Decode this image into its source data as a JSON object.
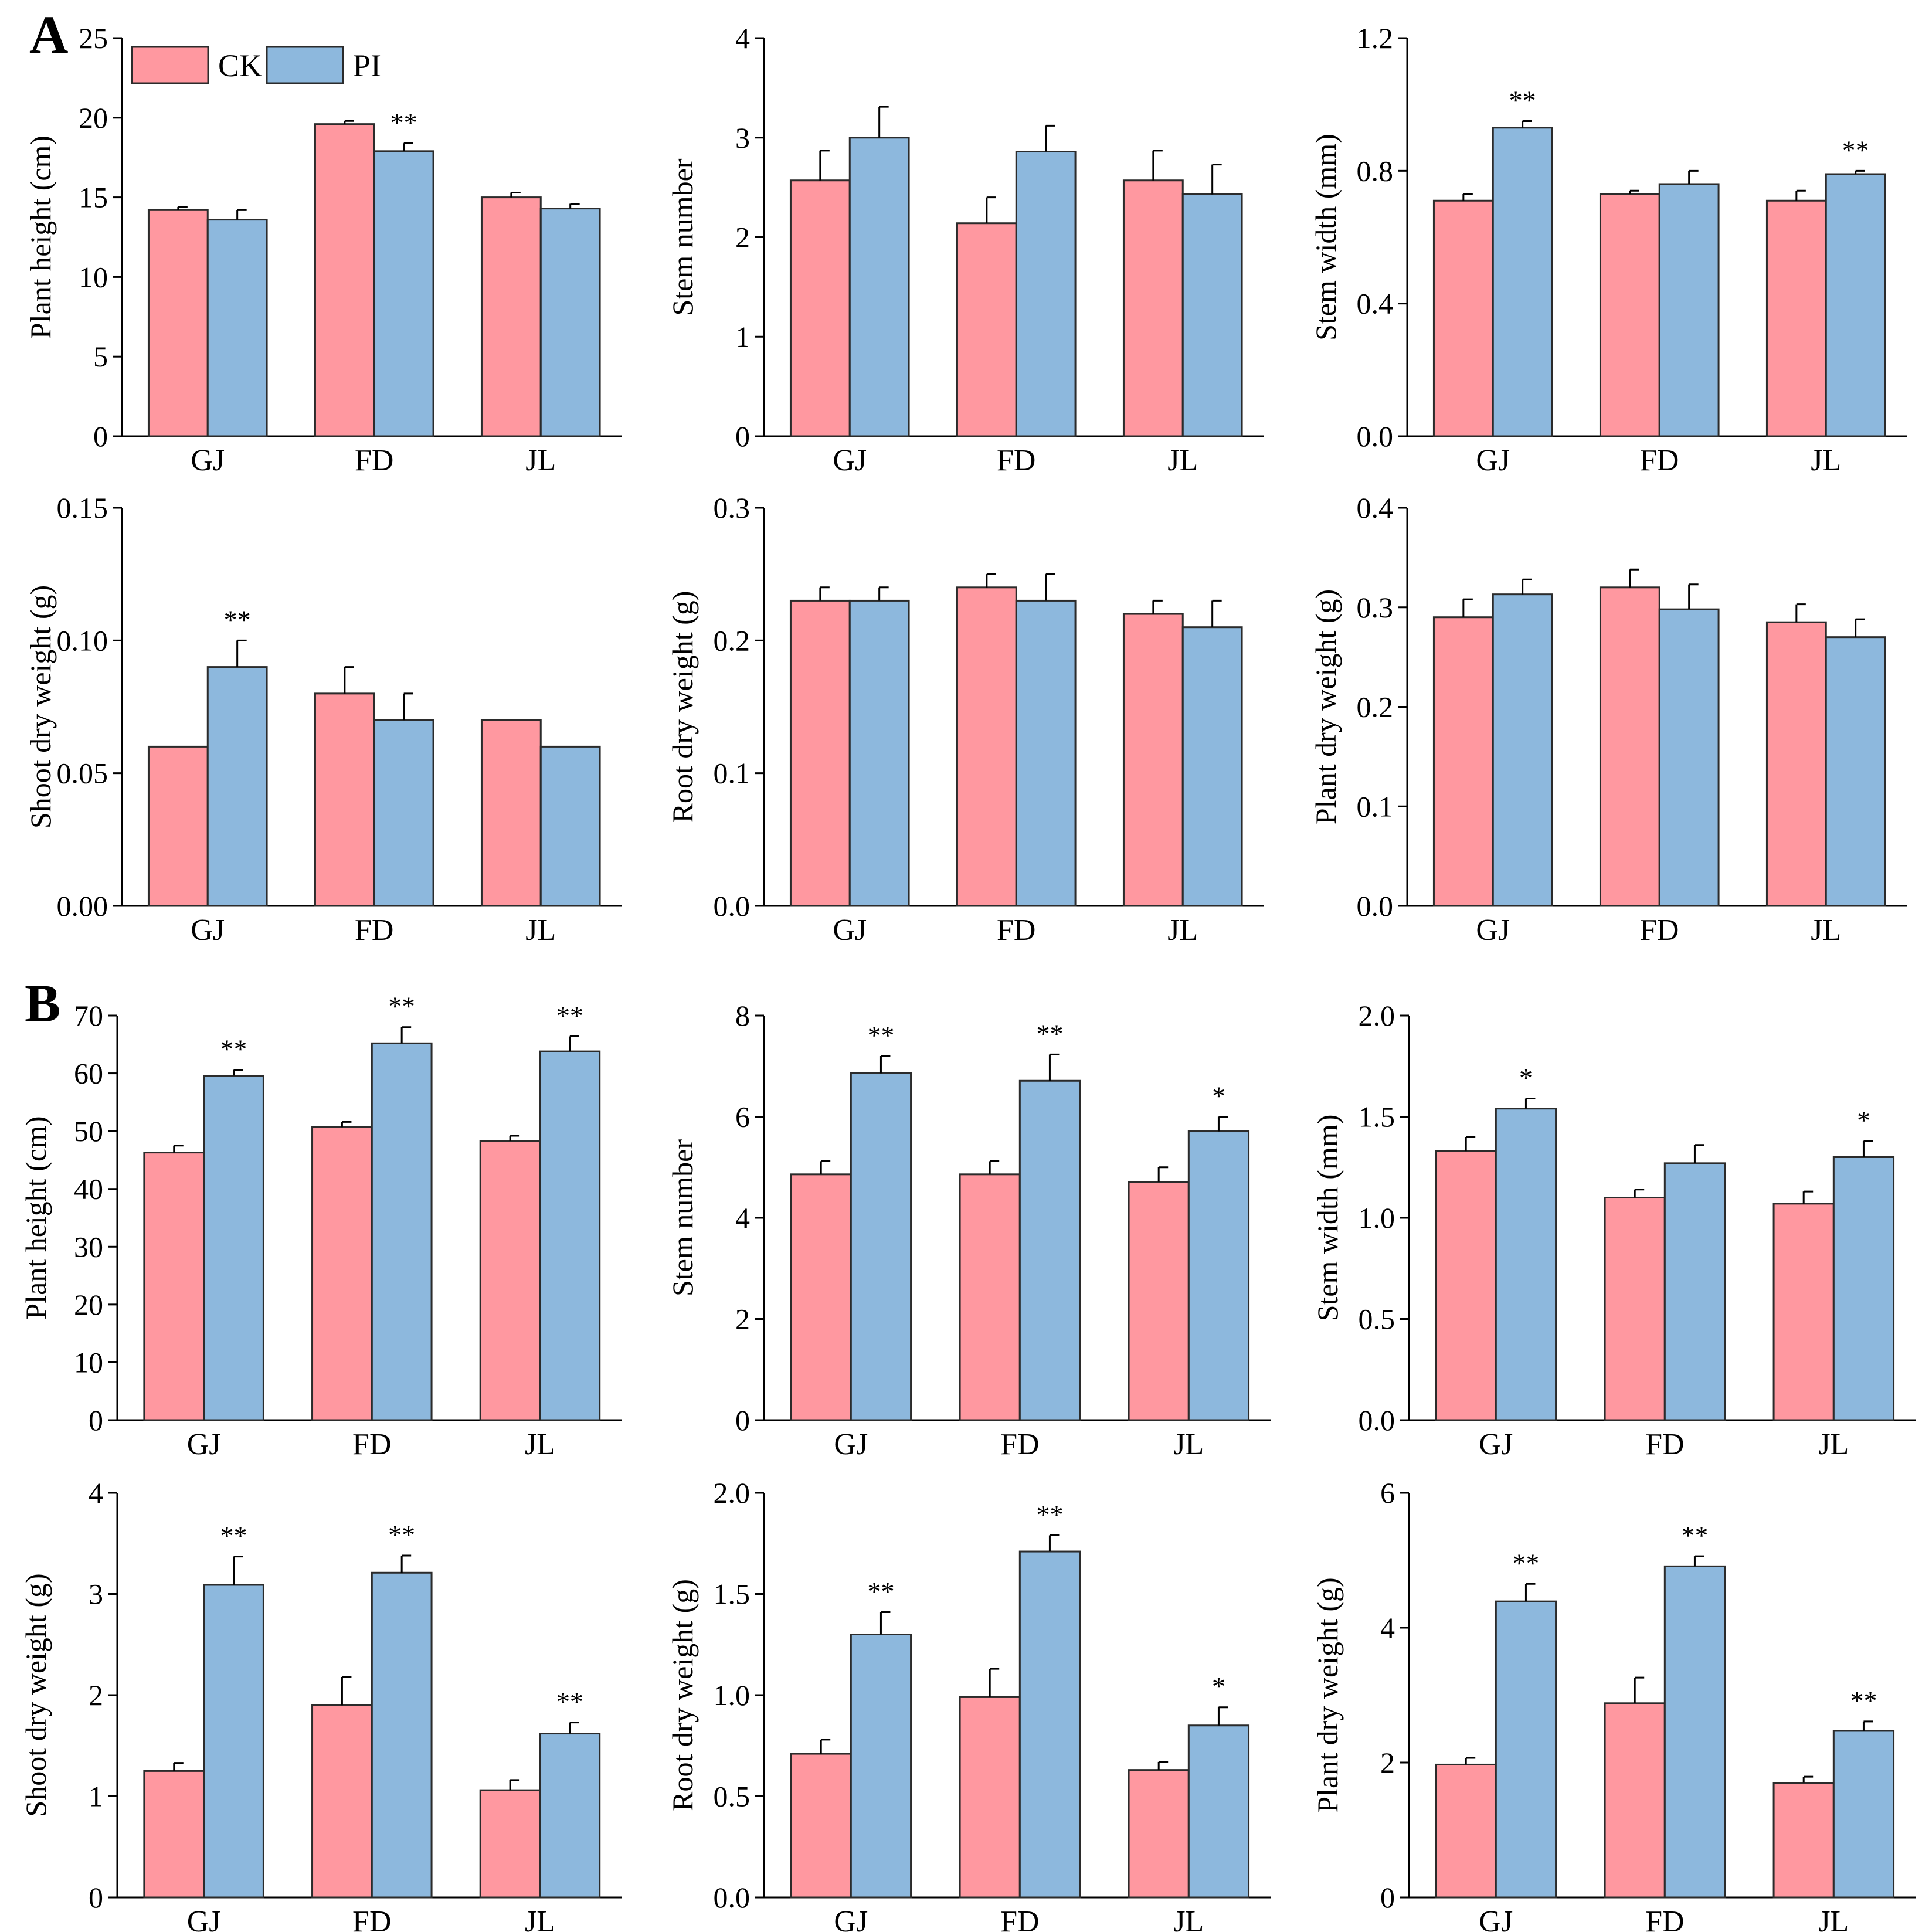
{
  "panel_labels": [
    "A",
    "B"
  ],
  "legend": [
    {
      "label": "CK",
      "color": "#ff98a0"
    },
    {
      "label": "PI",
      "color": "#8db8dd"
    }
  ],
  "colors": {
    "CK": "#ff98a0",
    "PI": "#8db8dd"
  },
  "chart_data": [
    {
      "type": "bar",
      "panel": "A",
      "ylabel": "Plant height (cm)",
      "categories": [
        "GJ",
        "FD",
        "JL"
      ],
      "ylim": [
        0,
        25
      ],
      "yticks": [
        "0",
        "5",
        "10",
        "15",
        "20",
        "25"
      ],
      "series": [
        {
          "name": "CK",
          "values": [
            14.2,
            19.6,
            15.0
          ],
          "errors": [
            0.2,
            0.2,
            0.3
          ]
        },
        {
          "name": "PI",
          "values": [
            13.6,
            17.9,
            14.3
          ],
          "errors": [
            0.6,
            0.5,
            0.3
          ]
        }
      ],
      "significance": [
        "",
        "**",
        ""
      ]
    },
    {
      "type": "bar",
      "panel": "A",
      "ylabel": "Stem number",
      "categories": [
        "GJ",
        "FD",
        "JL"
      ],
      "ylim": [
        0,
        4
      ],
      "yticks": [
        "0",
        "1",
        "2",
        "3",
        "4"
      ],
      "series": [
        {
          "name": "CK",
          "values": [
            2.57,
            2.14,
            2.57
          ],
          "errors": [
            0.3,
            0.26,
            0.3
          ]
        },
        {
          "name": "PI",
          "values": [
            3.0,
            2.86,
            2.43
          ],
          "errors": [
            0.31,
            0.26,
            0.3
          ]
        }
      ],
      "significance": [
        "",
        "",
        ""
      ]
    },
    {
      "type": "bar",
      "panel": "A",
      "ylabel": "Stem width (mm)",
      "categories": [
        "GJ",
        "FD",
        "JL"
      ],
      "ylim": [
        0,
        1.2
      ],
      "yticks": [
        "0.0",
        "0.4",
        "0.8",
        "1.2"
      ],
      "series": [
        {
          "name": "CK",
          "values": [
            0.71,
            0.73,
            0.71
          ],
          "errors": [
            0.02,
            0.01,
            0.03
          ]
        },
        {
          "name": "PI",
          "values": [
            0.93,
            0.76,
            0.79
          ],
          "errors": [
            0.02,
            0.04,
            0.01
          ]
        }
      ],
      "significance": [
        "**",
        "",
        "**"
      ]
    },
    {
      "type": "bar",
      "panel": "A",
      "ylabel": "Shoot dry weight (g)",
      "categories": [
        "GJ",
        "FD",
        "JL"
      ],
      "ylim": [
        0,
        0.15
      ],
      "yticks": [
        "0.00",
        "0.05",
        "0.10",
        "0.15"
      ],
      "series": [
        {
          "name": "CK",
          "values": [
            0.06,
            0.08,
            0.07
          ],
          "errors": [
            0,
            0.01,
            0
          ]
        },
        {
          "name": "PI",
          "values": [
            0.09,
            0.07,
            0.06
          ],
          "errors": [
            0.01,
            0.01,
            0
          ]
        }
      ],
      "significance": [
        "**",
        "",
        ""
      ]
    },
    {
      "type": "bar",
      "panel": "A",
      "ylabel": "Root dry weight (g)",
      "categories": [
        "GJ",
        "FD",
        "JL"
      ],
      "ylim": [
        0,
        0.3
      ],
      "yticks": [
        "0.0",
        "0.1",
        "0.2",
        "0.3"
      ],
      "series": [
        {
          "name": "CK",
          "values": [
            0.23,
            0.24,
            0.22
          ],
          "errors": [
            0.01,
            0.01,
            0.01
          ]
        },
        {
          "name": "PI",
          "values": [
            0.23,
            0.23,
            0.21
          ],
          "errors": [
            0.01,
            0.02,
            0.02
          ]
        }
      ],
      "significance": [
        "",
        "",
        ""
      ]
    },
    {
      "type": "bar",
      "panel": "A",
      "ylabel": "Plant dry weight (g)",
      "categories": [
        "GJ",
        "FD",
        "JL"
      ],
      "ylim": [
        0,
        0.4
      ],
      "yticks": [
        "0.0",
        "0.1",
        "0.2",
        "0.3",
        "0.4"
      ],
      "series": [
        {
          "name": "CK",
          "values": [
            0.29,
            0.32,
            0.285
          ],
          "errors": [
            0.018,
            0.018,
            0.018
          ]
        },
        {
          "name": "PI",
          "values": [
            0.313,
            0.298,
            0.27
          ],
          "errors": [
            0.015,
            0.025,
            0.018
          ]
        }
      ],
      "significance": [
        "",
        "",
        ""
      ]
    },
    {
      "type": "bar",
      "panel": "B",
      "ylabel": "Plant height (cm)",
      "categories": [
        "GJ",
        "FD",
        "JL"
      ],
      "ylim": [
        0,
        70
      ],
      "yticks": [
        "0",
        "10",
        "20",
        "30",
        "40",
        "50",
        "60",
        "70"
      ],
      "series": [
        {
          "name": "CK",
          "values": [
            46.3,
            50.7,
            48.3
          ],
          "errors": [
            1.2,
            0.9,
            0.9
          ]
        },
        {
          "name": "PI",
          "values": [
            59.6,
            65.2,
            63.8
          ],
          "errors": [
            1.0,
            2.8,
            2.6
          ]
        }
      ],
      "significance": [
        "**",
        "**",
        "**"
      ]
    },
    {
      "type": "bar",
      "panel": "B",
      "ylabel": "Stem number",
      "categories": [
        "GJ",
        "FD",
        "JL"
      ],
      "ylim": [
        0,
        8
      ],
      "yticks": [
        "0",
        "2",
        "4",
        "6",
        "8"
      ],
      "series": [
        {
          "name": "CK",
          "values": [
            4.86,
            4.86,
            4.71
          ],
          "errors": [
            0.26,
            0.26,
            0.29
          ]
        },
        {
          "name": "PI",
          "values": [
            6.86,
            6.71,
            5.71
          ],
          "errors": [
            0.34,
            0.52,
            0.29
          ]
        }
      ],
      "significance": [
        "**",
        "**",
        "*"
      ]
    },
    {
      "type": "bar",
      "panel": "B",
      "ylabel": "Stem width (mm)",
      "categories": [
        "GJ",
        "FD",
        "JL"
      ],
      "ylim": [
        0,
        2.0
      ],
      "yticks": [
        "0.0",
        "0.5",
        "1.0",
        "1.5",
        "2.0"
      ],
      "series": [
        {
          "name": "CK",
          "values": [
            1.33,
            1.1,
            1.07
          ],
          "errors": [
            0.07,
            0.04,
            0.06
          ]
        },
        {
          "name": "PI",
          "values": [
            1.54,
            1.27,
            1.3
          ],
          "errors": [
            0.05,
            0.09,
            0.08
          ]
        }
      ],
      "significance": [
        "*",
        "",
        "*"
      ]
    },
    {
      "type": "bar",
      "panel": "B",
      "ylabel": "Shoot dry weight (g)",
      "categories": [
        "GJ",
        "FD",
        "JL"
      ],
      "ylim": [
        0,
        4
      ],
      "yticks": [
        "0",
        "1",
        "2",
        "3",
        "4"
      ],
      "series": [
        {
          "name": "CK",
          "values": [
            1.25,
            1.9,
            1.06
          ],
          "errors": [
            0.08,
            0.28,
            0.1
          ]
        },
        {
          "name": "PI",
          "values": [
            3.09,
            3.21,
            1.62
          ],
          "errors": [
            0.28,
            0.17,
            0.11
          ]
        }
      ],
      "significance": [
        "**",
        "**",
        "**"
      ]
    },
    {
      "type": "bar",
      "panel": "B",
      "ylabel": "Root dry weight (g)",
      "categories": [
        "GJ",
        "FD",
        "JL"
      ],
      "ylim": [
        0,
        2.0
      ],
      "yticks": [
        "0.0",
        "0.5",
        "1.0",
        "1.5",
        "2.0"
      ],
      "series": [
        {
          "name": "CK",
          "values": [
            0.71,
            0.99,
            0.63
          ],
          "errors": [
            0.07,
            0.14,
            0.04
          ]
        },
        {
          "name": "PI",
          "values": [
            1.3,
            1.71,
            0.85
          ],
          "errors": [
            0.11,
            0.08,
            0.09
          ]
        }
      ],
      "significance": [
        "**",
        "**",
        "*"
      ]
    },
    {
      "type": "bar",
      "panel": "B",
      "ylabel": "Plant dry weight (g)",
      "categories": [
        "GJ",
        "FD",
        "JL"
      ],
      "ylim": [
        0,
        6
      ],
      "yticks": [
        "0",
        "2",
        "4",
        "6"
      ],
      "series": [
        {
          "name": "CK",
          "values": [
            1.97,
            2.88,
            1.7
          ],
          "errors": [
            0.1,
            0.38,
            0.09
          ]
        },
        {
          "name": "PI",
          "values": [
            4.39,
            4.91,
            2.47
          ],
          "errors": [
            0.26,
            0.15,
            0.14
          ]
        }
      ],
      "significance": [
        "**",
        "**",
        "**"
      ]
    }
  ]
}
